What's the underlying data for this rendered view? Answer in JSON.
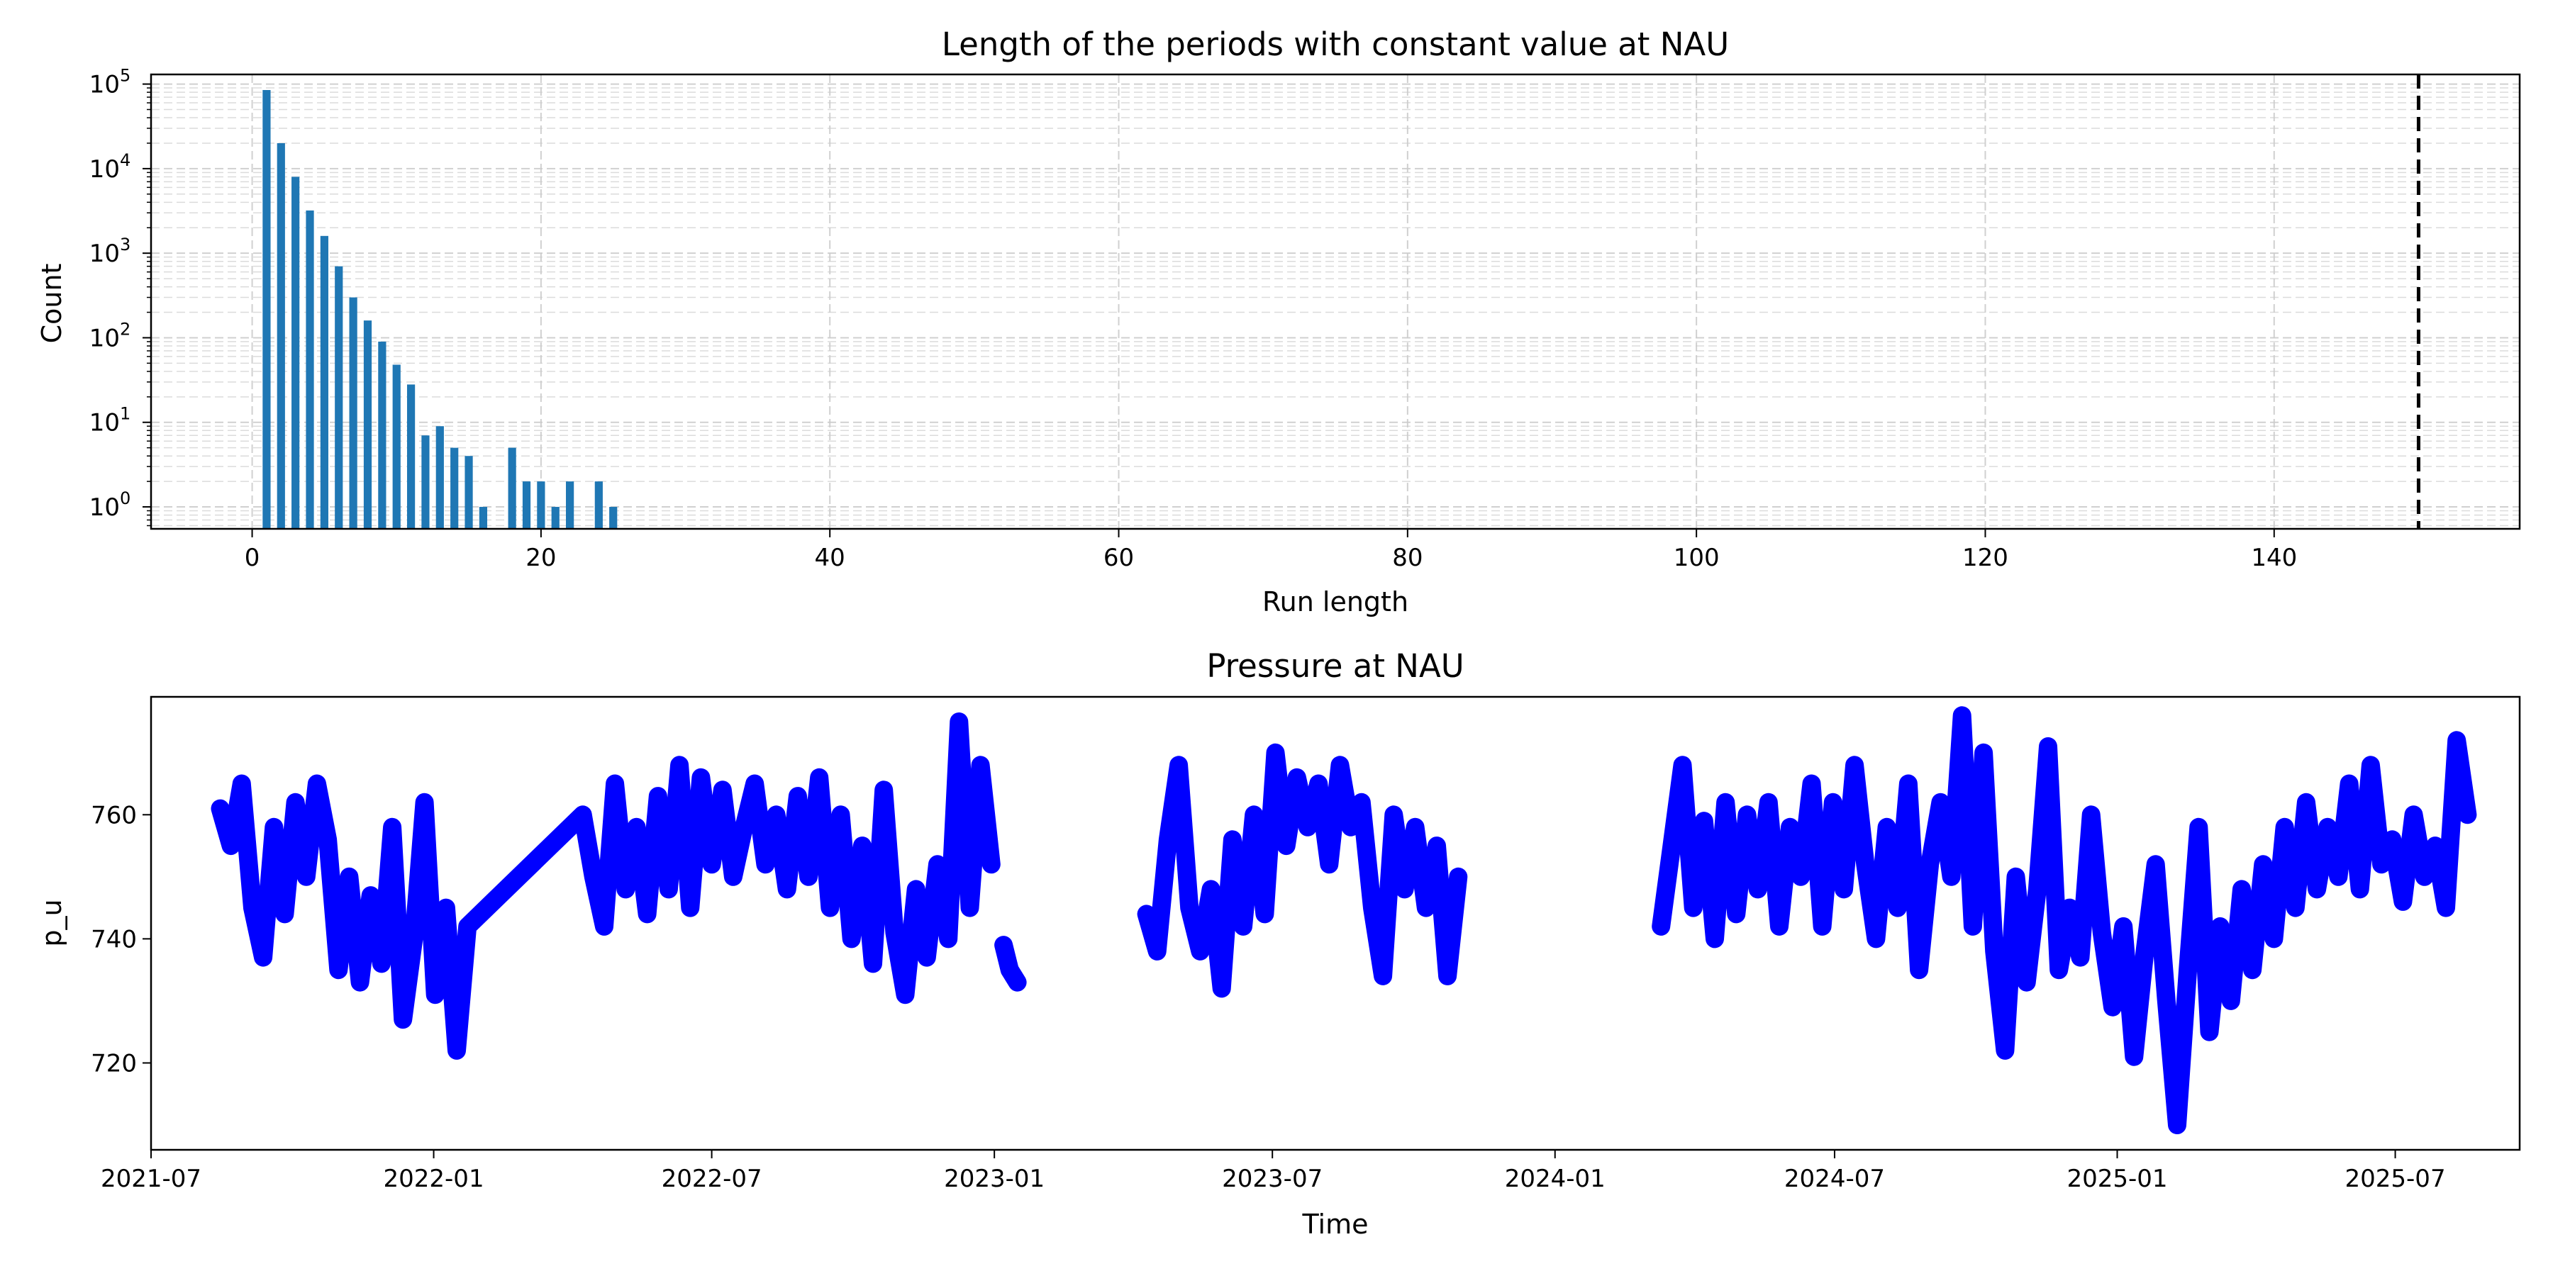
{
  "chart_data": [
    {
      "type": "bar",
      "title": "Length of the periods with constant value at NAU",
      "xlabel": "Run length",
      "ylabel": "Count",
      "yscale": "log",
      "xlim": [
        -7,
        157
      ],
      "ylim": [
        0.55,
        130000
      ],
      "xticks": [
        0,
        20,
        40,
        60,
        80,
        100,
        120,
        140
      ],
      "yticks": [
        1,
        10,
        100,
        1000,
        10000,
        100000
      ],
      "ytick_labels": [
        {
          "base": "10",
          "exp": "0"
        },
        {
          "base": "10",
          "exp": "1"
        },
        {
          "base": "10",
          "exp": "2"
        },
        {
          "base": "10",
          "exp": "3"
        },
        {
          "base": "10",
          "exp": "4"
        },
        {
          "base": "10",
          "exp": "5"
        }
      ],
      "grid": true,
      "bar_color": "#1f77b4",
      "x": [
        1,
        2,
        3,
        4,
        5,
        6,
        7,
        8,
        9,
        10,
        11,
        12,
        13,
        14,
        15,
        16,
        18,
        19,
        20,
        21,
        22,
        24,
        25
      ],
      "values": [
        85000,
        20000,
        8000,
        3200,
        1600,
        700,
        300,
        160,
        90,
        48,
        28,
        7,
        9,
        5,
        4,
        1,
        5,
        2,
        2,
        1,
        2,
        2,
        1
      ],
      "threshold_line": {
        "x": 150,
        "style": "dashed",
        "color": "#000000"
      }
    },
    {
      "type": "line",
      "title": "Pressure at NAU",
      "xlabel": "Time",
      "ylabel": "p_u",
      "xlim": [
        "2021-07-01",
        "2025-09-20"
      ],
      "ylim": [
        706,
        779
      ],
      "xticks": [
        "2021-07-01",
        "2022-01-01",
        "2022-07-01",
        "2023-01-01",
        "2023-07-01",
        "2024-01-01",
        "2024-07-01",
        "2025-01-01",
        "2025-07-01"
      ],
      "xtick_labels": [
        "2021-07",
        "2022-01",
        "2022-07",
        "2023-01",
        "2023-07",
        "2024-01",
        "2024-07",
        "2025-01",
        "2025-07"
      ],
      "yticks": [
        720,
        740,
        760
      ],
      "color": "#0000ff",
      "series": [
        {
          "points": [
            [
              "2021-08-15",
              761
            ],
            [
              "2021-08-22",
              755
            ],
            [
              "2021-08-29",
              765
            ],
            [
              "2021-09-05",
              745
            ],
            [
              "2021-09-12",
              737
            ],
            [
              "2021-09-19",
              758
            ],
            [
              "2021-09-26",
              744
            ],
            [
              "2021-10-03",
              762
            ],
            [
              "2021-10-10",
              750
            ],
            [
              "2021-10-17",
              765
            ],
            [
              "2021-10-24",
              756
            ],
            [
              "2021-10-31",
              735
            ],
            [
              "2021-11-07",
              750
            ],
            [
              "2021-11-14",
              733
            ],
            [
              "2021-11-21",
              747
            ],
            [
              "2021-11-28",
              736
            ],
            [
              "2021-12-05",
              758
            ],
            [
              "2021-12-12",
              727
            ],
            [
              "2021-12-19",
              740
            ],
            [
              "2021-12-26",
              762
            ],
            [
              "2022-01-02",
              731
            ],
            [
              "2022-01-09",
              745
            ],
            [
              "2022-01-16",
              722
            ],
            [
              "2022-01-23",
              742
            ],
            [
              "2022-04-08",
              760
            ],
            [
              "2022-04-15",
              750
            ],
            [
              "2022-04-22",
              742
            ],
            [
              "2022-04-29",
              765
            ],
            [
              "2022-05-06",
              748
            ],
            [
              "2022-05-13",
              758
            ],
            [
              "2022-05-20",
              744
            ],
            [
              "2022-05-27",
              763
            ],
            [
              "2022-06-03",
              748
            ],
            [
              "2022-06-10",
              768
            ],
            [
              "2022-06-17",
              745
            ],
            [
              "2022-06-24",
              766
            ],
            [
              "2022-07-01",
              752
            ],
            [
              "2022-07-08",
              764
            ],
            [
              "2022-07-15",
              750
            ],
            [
              "2022-07-22",
              758
            ],
            [
              "2022-07-29",
              765
            ],
            [
              "2022-08-05",
              752
            ],
            [
              "2022-08-12",
              760
            ],
            [
              "2022-08-19",
              748
            ],
            [
              "2022-08-26",
              763
            ],
            [
              "2022-09-02",
              750
            ],
            [
              "2022-09-09",
              766
            ],
            [
              "2022-09-16",
              745
            ],
            [
              "2022-09-23",
              760
            ],
            [
              "2022-09-30",
              740
            ],
            [
              "2022-10-07",
              755
            ],
            [
              "2022-10-14",
              736
            ],
            [
              "2022-10-21",
              764
            ],
            [
              "2022-10-28",
              741
            ],
            [
              "2022-11-04",
              731
            ],
            [
              "2022-11-11",
              748
            ],
            [
              "2022-11-18",
              737
            ],
            [
              "2022-11-25",
              752
            ],
            [
              "2022-12-02",
              740
            ],
            [
              "2022-12-09",
              775
            ],
            [
              "2022-12-16",
              745
            ],
            [
              "2022-12-23",
              768
            ],
            [
              "2022-12-30",
              752
            ]
          ]
        },
        {
          "points": [
            [
              "2023-01-07",
              739
            ],
            [
              "2023-01-11",
              735
            ],
            [
              "2023-01-16",
              733
            ]
          ]
        },
        {
          "points": [
            [
              "2023-04-10",
              744
            ],
            [
              "2023-04-17",
              738
            ],
            [
              "2023-04-24",
              756
            ],
            [
              "2023-05-01",
              768
            ],
            [
              "2023-05-08",
              745
            ],
            [
              "2023-05-15",
              738
            ],
            [
              "2023-05-22",
              748
            ],
            [
              "2023-05-29",
              732
            ],
            [
              "2023-06-05",
              756
            ],
            [
              "2023-06-12",
              742
            ],
            [
              "2023-06-19",
              760
            ],
            [
              "2023-06-26",
              744
            ],
            [
              "2023-07-03",
              770
            ],
            [
              "2023-07-10",
              755
            ],
            [
              "2023-07-17",
              766
            ],
            [
              "2023-07-24",
              758
            ],
            [
              "2023-07-31",
              765
            ],
            [
              "2023-08-07",
              752
            ],
            [
              "2023-08-14",
              768
            ],
            [
              "2023-08-21",
              758
            ],
            [
              "2023-08-28",
              762
            ],
            [
              "2023-09-04",
              745
            ],
            [
              "2023-09-11",
              734
            ],
            [
              "2023-09-18",
              760
            ],
            [
              "2023-09-25",
              748
            ],
            [
              "2023-10-02",
              758
            ],
            [
              "2023-10-09",
              745
            ],
            [
              "2023-10-16",
              755
            ],
            [
              "2023-10-23",
              734
            ],
            [
              "2023-10-30",
              750
            ]
          ]
        },
        {
          "points": [
            [
              "2024-03-10",
              742
            ],
            [
              "2024-03-17",
              755
            ],
            [
              "2024-03-24",
              768
            ],
            [
              "2024-03-31",
              745
            ],
            [
              "2024-04-07",
              759
            ],
            [
              "2024-04-14",
              740
            ],
            [
              "2024-04-21",
              762
            ],
            [
              "2024-04-28",
              744
            ],
            [
              "2024-05-05",
              760
            ],
            [
              "2024-05-12",
              748
            ],
            [
              "2024-05-19",
              762
            ],
            [
              "2024-05-26",
              742
            ],
            [
              "2024-06-02",
              758
            ],
            [
              "2024-06-09",
              750
            ],
            [
              "2024-06-16",
              765
            ],
            [
              "2024-06-23",
              742
            ],
            [
              "2024-06-30",
              762
            ],
            [
              "2024-07-07",
              748
            ],
            [
              "2024-07-14",
              768
            ],
            [
              "2024-07-21",
              752
            ],
            [
              "2024-07-28",
              740
            ],
            [
              "2024-08-04",
              758
            ],
            [
              "2024-08-11",
              745
            ],
            [
              "2024-08-18",
              765
            ],
            [
              "2024-08-25",
              735
            ],
            [
              "2024-09-01",
              752
            ],
            [
              "2024-09-08",
              762
            ],
            [
              "2024-09-15",
              750
            ],
            [
              "2024-09-22",
              776
            ],
            [
              "2024-09-29",
              742
            ],
            [
              "2024-10-06",
              770
            ],
            [
              "2024-10-13",
              738
            ],
            [
              "2024-10-20",
              722
            ],
            [
              "2024-10-27",
              750
            ],
            [
              "2024-11-03",
              733
            ],
            [
              "2024-11-10",
              748
            ],
            [
              "2024-11-17",
              771
            ],
            [
              "2024-11-24",
              735
            ],
            [
              "2024-12-01",
              745
            ],
            [
              "2024-12-08",
              737
            ],
            [
              "2024-12-15",
              760
            ],
            [
              "2024-12-22",
              741
            ],
            [
              "2024-12-29",
              729
            ],
            [
              "2025-01-05",
              742
            ],
            [
              "2025-01-12",
              721
            ],
            [
              "2025-01-19",
              738
            ],
            [
              "2025-01-26",
              752
            ],
            [
              "2025-02-02",
              730
            ],
            [
              "2025-02-09",
              710
            ],
            [
              "2025-02-16",
              735
            ],
            [
              "2025-02-23",
              758
            ],
            [
              "2025-03-02",
              725
            ],
            [
              "2025-03-09",
              742
            ],
            [
              "2025-03-16",
              730
            ],
            [
              "2025-03-23",
              748
            ],
            [
              "2025-03-30",
              735
            ],
            [
              "2025-04-06",
              752
            ],
            [
              "2025-04-13",
              740
            ],
            [
              "2025-04-20",
              758
            ],
            [
              "2025-04-27",
              745
            ],
            [
              "2025-05-04",
              762
            ],
            [
              "2025-05-11",
              748
            ],
            [
              "2025-05-18",
              758
            ],
            [
              "2025-05-25",
              750
            ],
            [
              "2025-06-01",
              765
            ],
            [
              "2025-06-08",
              748
            ],
            [
              "2025-06-15",
              768
            ],
            [
              "2025-06-22",
              752
            ],
            [
              "2025-06-29",
              756
            ],
            [
              "2025-07-06",
              746
            ],
            [
              "2025-07-13",
              760
            ],
            [
              "2025-07-20",
              750
            ],
            [
              "2025-07-27",
              755
            ],
            [
              "2025-08-03",
              745
            ],
            [
              "2025-08-10",
              772
            ],
            [
              "2025-08-17",
              760
            ]
          ]
        }
      ]
    }
  ]
}
